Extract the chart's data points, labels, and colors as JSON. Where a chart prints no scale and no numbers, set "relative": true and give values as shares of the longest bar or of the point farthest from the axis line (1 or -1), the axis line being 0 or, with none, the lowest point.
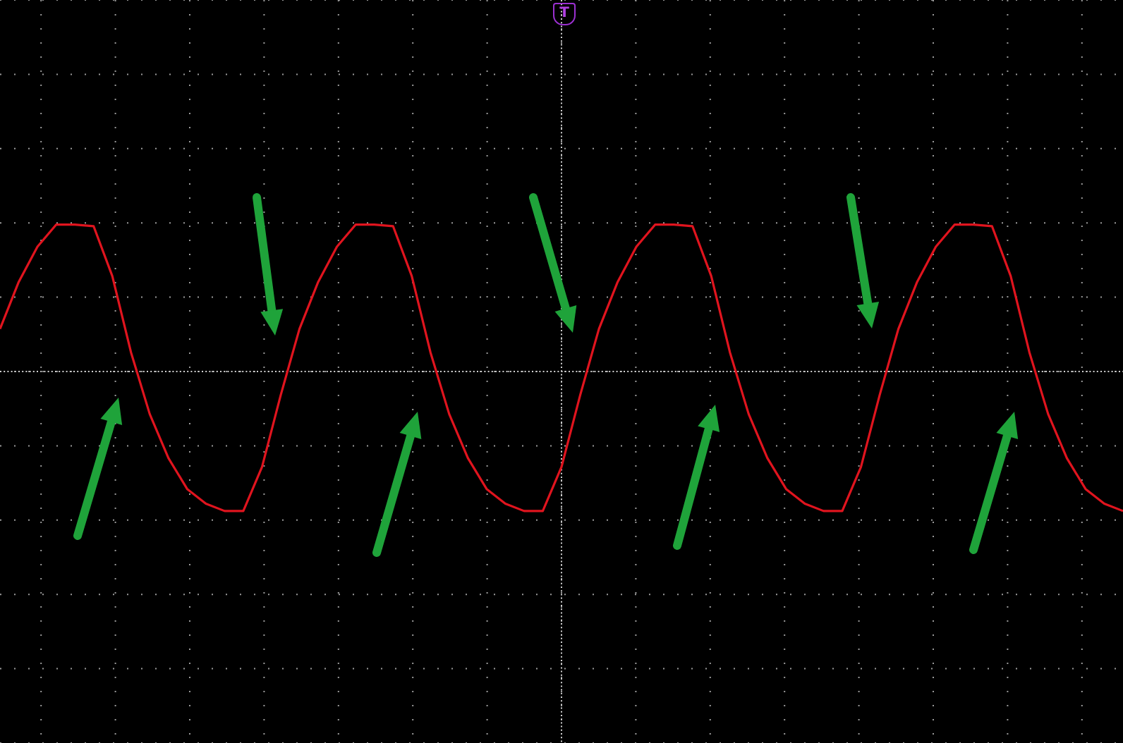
{
  "chart_data": {
    "type": "line",
    "relative": true,
    "grid": true,
    "legend": false,
    "marker": "none",
    "line_style": "solid",
    "annotations": [
      "T"
    ],
    "ref_lines": [
      {
        "axis": "y",
        "value": 0,
        "color": "#d0d0d0",
        "line_style": "dotted"
      }
    ],
    "categories": [
      null,
      null,
      null,
      null,
      null,
      null,
      null,
      null,
      null,
      null,
      null,
      null,
      null,
      null,
      null,
      null,
      null,
      null,
      null,
      null,
      null,
      null,
      null,
      null,
      null,
      null,
      null,
      null,
      null,
      null,
      null,
      null,
      null,
      null,
      null,
      null,
      null,
      null,
      null,
      null,
      null,
      null,
      null,
      null,
      null,
      null,
      null,
      null,
      null,
      null,
      null,
      null,
      null,
      null,
      null,
      null,
      null,
      null,
      null,
      null,
      null
    ],
    "series": [
      {
        "color": "#e0141e",
        "values": [
          0.29,
          0.61,
          0.85,
          1,
          1,
          0.99,
          0.65,
          0.13,
          -0.29,
          -0.59,
          -0.8,
          -0.9,
          -0.95,
          -0.95,
          -0.65,
          -0.16,
          0.29,
          0.61,
          0.85,
          1,
          1,
          0.99,
          0.65,
          0.13,
          -0.29,
          -0.59,
          -0.8,
          -0.9,
          -0.95,
          -0.95,
          -0.65,
          -0.16,
          0.29,
          0.61,
          0.85,
          1,
          1,
          0.99,
          0.65,
          0.13,
          -0.29,
          -0.59,
          -0.8,
          -0.9,
          -0.95,
          -0.95,
          -0.65,
          -0.16,
          0.29,
          0.61,
          0.85,
          1,
          1,
          0.99,
          0.65,
          0.13,
          -0.29,
          -0.59,
          -0.8,
          -0.9,
          -0.95
        ]
      }
    ]
  }
}
